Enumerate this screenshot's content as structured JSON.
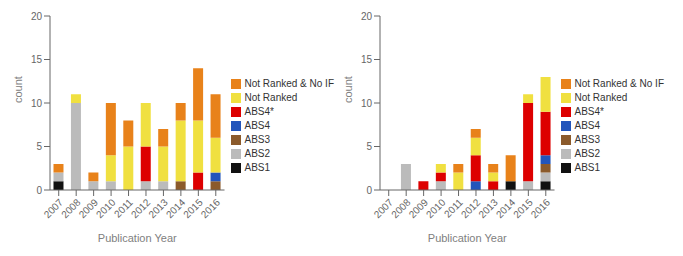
{
  "chart_data": [
    {
      "type": "bar",
      "stacked": true,
      "grid": false,
      "legend": "right",
      "categories": [
        "2007",
        "2008",
        "2009",
        "2010",
        "2011",
        "2012",
        "2013",
        "2014",
        "2015",
        "2016"
      ],
      "xlabel": "Publication Year",
      "ylabel": "count",
      "ylim": [
        0,
        20
      ],
      "yticks": [
        0,
        5,
        10,
        15,
        20
      ],
      "series": [
        {
          "name": "ABS1",
          "color": "#111111",
          "values": [
            1,
            0,
            0,
            0,
            0,
            0,
            0,
            0,
            0,
            0
          ]
        },
        {
          "name": "ABS2",
          "color": "#BBBBBB",
          "values": [
            1,
            10,
            1,
            1,
            0,
            1,
            1,
            0,
            0,
            0
          ]
        },
        {
          "name": "ABS3",
          "color": "#8B5A2B",
          "values": [
            0,
            0,
            0,
            0,
            0,
            0,
            0,
            1,
            0,
            1
          ]
        },
        {
          "name": "ABS4",
          "color": "#2255BB",
          "values": [
            0,
            0,
            0,
            0,
            0,
            0,
            0,
            0,
            0,
            1
          ]
        },
        {
          "name": "ABS4*",
          "color": "#DD0000",
          "values": [
            0,
            0,
            0,
            0,
            0,
            4,
            0,
            0,
            2,
            0
          ]
        },
        {
          "name": "Not Ranked",
          "color": "#F0E040",
          "values": [
            0,
            1,
            0,
            3,
            5,
            5,
            4,
            7,
            6,
            4
          ]
        },
        {
          "name": "Not Ranked & No IF",
          "color": "#E8821A",
          "values": [
            1,
            0,
            1,
            6,
            3,
            0,
            2,
            2,
            6,
            5
          ]
        }
      ]
    },
    {
      "type": "bar",
      "stacked": true,
      "grid": false,
      "legend": "right",
      "categories": [
        "2007",
        "2008",
        "2009",
        "2010",
        "2011",
        "2012",
        "2013",
        "2014",
        "2015",
        "2016"
      ],
      "xlabel": "Publication Year",
      "ylabel": "count",
      "ylim": [
        0,
        20
      ],
      "yticks": [
        0,
        5,
        10,
        15,
        20
      ],
      "series": [
        {
          "name": "ABS1",
          "color": "#111111",
          "values": [
            0,
            0,
            0,
            0,
            0,
            0,
            0,
            1,
            0,
            1
          ]
        },
        {
          "name": "ABS2",
          "color": "#BBBBBB",
          "values": [
            0,
            3,
            0,
            1,
            0,
            0,
            0,
            0,
            1,
            1
          ]
        },
        {
          "name": "ABS3",
          "color": "#8B5A2B",
          "values": [
            0,
            0,
            0,
            0,
            0,
            0,
            0,
            0,
            0,
            1
          ]
        },
        {
          "name": "ABS4",
          "color": "#2255BB",
          "values": [
            0,
            0,
            0,
            0,
            0,
            1,
            0,
            0,
            0,
            1
          ]
        },
        {
          "name": "ABS4*",
          "color": "#DD0000",
          "values": [
            0,
            0,
            1,
            1,
            0,
            3,
            1,
            0,
            9,
            5
          ]
        },
        {
          "name": "Not Ranked",
          "color": "#F0E040",
          "values": [
            0,
            0,
            0,
            1,
            2,
            2,
            1,
            0,
            1,
            4
          ]
        },
        {
          "name": "Not Ranked & No IF",
          "color": "#E8821A",
          "values": [
            0,
            0,
            0,
            0,
            1,
            1,
            1,
            3,
            0,
            0
          ]
        }
      ]
    }
  ]
}
